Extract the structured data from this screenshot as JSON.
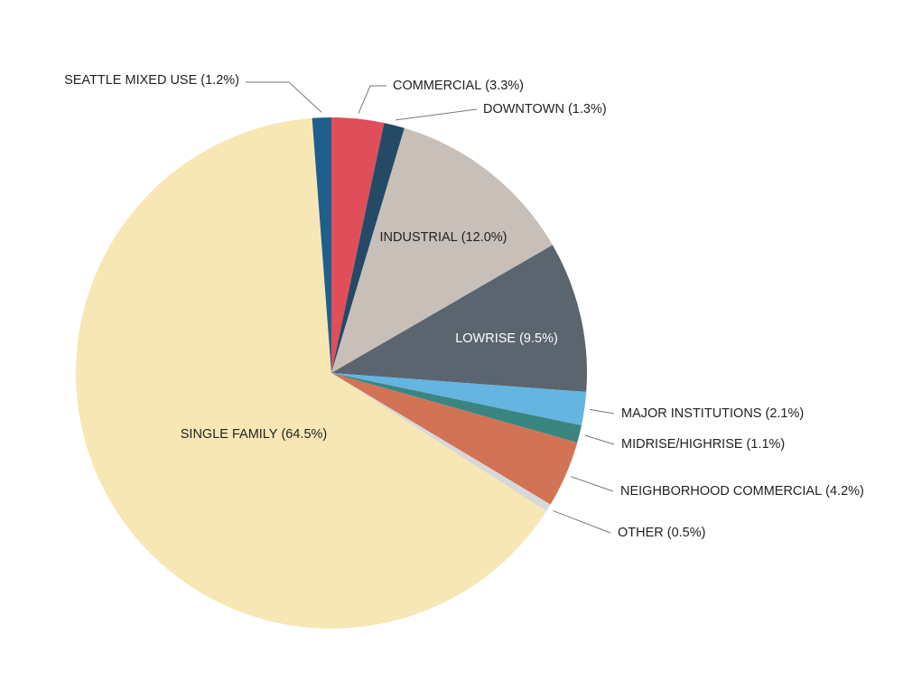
{
  "chart_data": {
    "type": "pie",
    "categories": [
      "COMMERCIAL",
      "DOWNTOWN",
      "INDUSTRIAL",
      "LOWRISE",
      "MAJOR INSTITUTIONS",
      "MIDRISE/HIGHRISE",
      "NEIGHBORHOOD COMMERCIAL",
      "OTHER",
      "SINGLE FAMILY",
      "SEATTLE MIXED USE"
    ],
    "values": [
      3.3,
      1.3,
      12.0,
      9.5,
      2.1,
      1.1,
      4.2,
      0.5,
      64.5,
      1.2
    ],
    "value_labels": [
      "(3.3%)",
      "(1.3%)",
      "(12.0%)",
      "(9.5%)",
      "(2.1%)",
      "(1.1%)",
      "(4.2%)",
      "(0.5%)",
      "(64.5%)",
      "(1.2%)"
    ],
    "colors": [
      "#e04e5a",
      "#244a66",
      "#c8bfb8",
      "#5a6570",
      "#64b5e0",
      "#3b8580",
      "#d27356",
      "#d8d8d8",
      "#f6e7b5",
      "#1f5f8b"
    ]
  }
}
